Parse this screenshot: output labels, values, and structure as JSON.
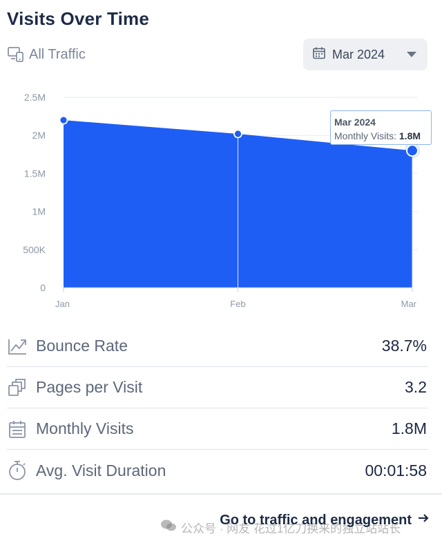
{
  "header": {
    "title": "Visits Over Time",
    "traffic_filter": "All Traffic",
    "date_select": "Mar 2024"
  },
  "chart_data": {
    "type": "area",
    "categories": [
      "Jan",
      "Feb",
      "Mar"
    ],
    "series": [
      {
        "values": [
          2200000,
          2020000,
          1800000
        ]
      }
    ],
    "yticks": [
      "0",
      "500K",
      "1M",
      "1.5M",
      "2M",
      "2.5M"
    ],
    "ylim": [
      0,
      2500000
    ],
    "grid": true,
    "color": "#1f5ef4",
    "tooltip": {
      "title": "Mar 2024",
      "label": "Monthly Visits:",
      "value": "1.8M"
    }
  },
  "metrics": [
    {
      "label": "Bounce Rate",
      "value": "38.7%",
      "icon": "trend-icon"
    },
    {
      "label": "Pages per Visit",
      "value": "3.2",
      "icon": "pages-icon"
    },
    {
      "label": "Monthly Visits",
      "value": "1.8M",
      "icon": "calendar-icon"
    },
    {
      "label": "Avg. Visit Duration",
      "value": "00:01:58",
      "icon": "stopwatch-icon"
    }
  ],
  "footer": {
    "cta_label": "Go to traffic and engagement",
    "watermark": "公众号 · 网友 花过1亿刀换来的独立站站长"
  }
}
